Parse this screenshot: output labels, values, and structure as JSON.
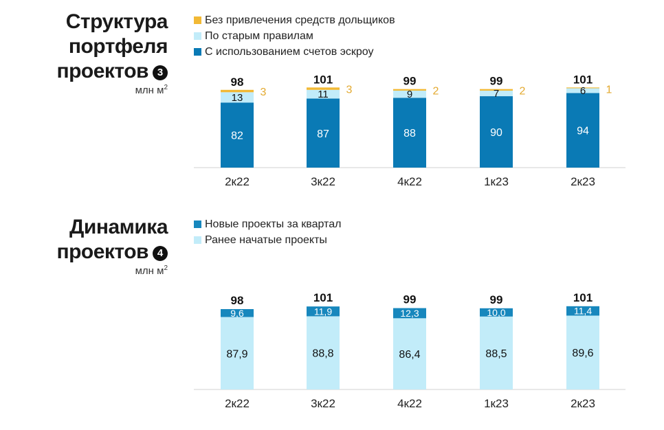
{
  "colors": {
    "escrow": "#0a7ab5",
    "old_rules": "#c2ecf9",
    "no_funds": "#f2b935",
    "new_projects": "#1787bd",
    "earlier_projects": "#c2ecf9",
    "text_dark": "#111111",
    "label_orange": "#e3a92f"
  },
  "chart1": {
    "title_lines": [
      "Структура",
      "портфеля",
      "проектов"
    ],
    "badge": "3",
    "unit": "млн м",
    "unit_sup": "2",
    "legend": [
      {
        "label": "Без привлечения средств дольщиков",
        "color": "#f2b935"
      },
      {
        "label": "По старым правилам",
        "color": "#c2ecf9"
      },
      {
        "label": "С использованием счетов эскроу",
        "color": "#0a7ab5"
      }
    ]
  },
  "chart2": {
    "title_lines": [
      "Динамика",
      "проектов"
    ],
    "badge": "4",
    "unit": "млн м",
    "unit_sup": "2",
    "legend": [
      {
        "label": "Новые проекты за квартал",
        "color": "#1787bd"
      },
      {
        "label": "Ранее начатые проекты",
        "color": "#c2ecf9"
      }
    ]
  },
  "chart_data": [
    {
      "type": "bar",
      "stacked": true,
      "title": "Структура портфеля проектов",
      "ylabel": "млн м2",
      "categories": [
        "2к22",
        "3к22",
        "4к22",
        "1к23",
        "2к23"
      ],
      "totals": [
        "98",
        "101",
        "99",
        "99",
        "101"
      ],
      "series": [
        {
          "name": "С использованием счетов эскроу",
          "values": [
            82,
            87,
            88,
            90,
            94
          ],
          "labels": [
            "82",
            "87",
            "88",
            "90",
            "94"
          ],
          "color": "#0a7ab5"
        },
        {
          "name": "По старым правилам",
          "values": [
            13,
            11,
            9,
            7,
            6
          ],
          "labels": [
            "13",
            "11",
            "9",
            "7",
            "6"
          ],
          "color": "#c2ecf9"
        },
        {
          "name": "Без привлечения средств дольщиков",
          "values": [
            3,
            3,
            2,
            2,
            1
          ],
          "labels": [
            "3",
            "3",
            "2",
            "2",
            "1"
          ],
          "color": "#f2b935"
        }
      ],
      "ylim": [
        0,
        101
      ]
    },
    {
      "type": "bar",
      "stacked": true,
      "title": "Динамика проектов",
      "ylabel": "млн м2",
      "categories": [
        "2к22",
        "3к22",
        "4к22",
        "1к23",
        "2к23"
      ],
      "totals": [
        "98",
        "101",
        "99",
        "99",
        "101"
      ],
      "series": [
        {
          "name": "Ранее начатые проекты",
          "values": [
            87.9,
            88.8,
            86.4,
            88.5,
            89.6
          ],
          "labels": [
            "87,9",
            "88,8",
            "86,4",
            "88,5",
            "89,6"
          ],
          "color": "#c2ecf9"
        },
        {
          "name": "Новые проекты за квартал",
          "values": [
            9.6,
            11.9,
            12.3,
            10.0,
            11.4
          ],
          "labels": [
            "9,6",
            "11,9",
            "12,3",
            "10,0",
            "11,4"
          ],
          "color": "#1787bd"
        }
      ],
      "ylim": [
        0,
        101
      ]
    }
  ]
}
